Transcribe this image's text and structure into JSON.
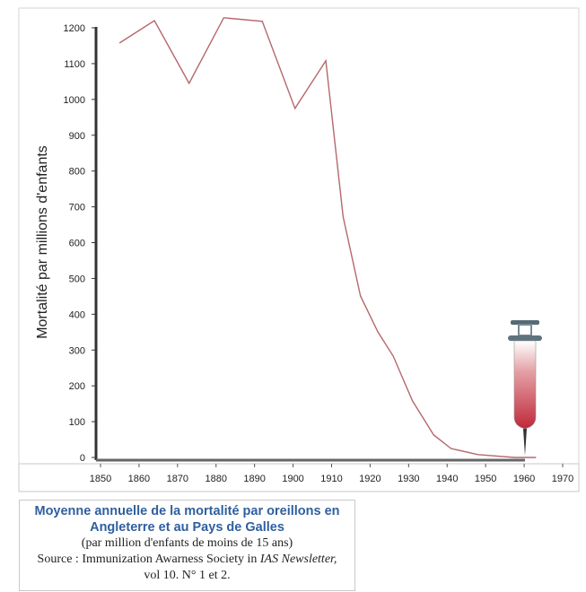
{
  "chart_data": {
    "type": "line",
    "title": "Moyenne annuelle de la mortalité par oreillons en Angleterre et au Pays de Galles",
    "subtitle": "(par million d'enfants de moins de 15 ans)",
    "source_prefix": "Source : Immunization Awarness Society in ",
    "source_journal": "IAS Newsletter,",
    "source_vol": "vol 10. N° 1 et 2.",
    "xlabel": "",
    "ylabel": "Mortalité par millions d'enfants",
    "xlim": [
      1850,
      1970
    ],
    "ylim": [
      0,
      1200
    ],
    "xticks": [
      "1850",
      "1860",
      "1870",
      "1880",
      "1890",
      "1900",
      "1910",
      "1920",
      "1930",
      "1940",
      "1950",
      "1960",
      "1970"
    ],
    "yticks": [
      "0",
      "100",
      "200",
      "300",
      "400",
      "500",
      "600",
      "700",
      "800",
      "900",
      "1000",
      "1100",
      "1200"
    ],
    "series": [
      {
        "name": "mortalité",
        "color": "#b5686d",
        "x": [
          1855,
          1864,
          1873,
          1882,
          1892,
          1900.5,
          1908.5,
          1913,
          1917.5,
          1922,
          1926,
          1931,
          1936.5,
          1941,
          1948,
          1957.5,
          1963
        ],
        "y": [
          1158,
          1220,
          1045,
          1228,
          1218,
          975,
          1108,
          672,
          451,
          351,
          283,
          158,
          63,
          25,
          8,
          0,
          0
        ]
      }
    ],
    "accent": "#c0283a"
  }
}
